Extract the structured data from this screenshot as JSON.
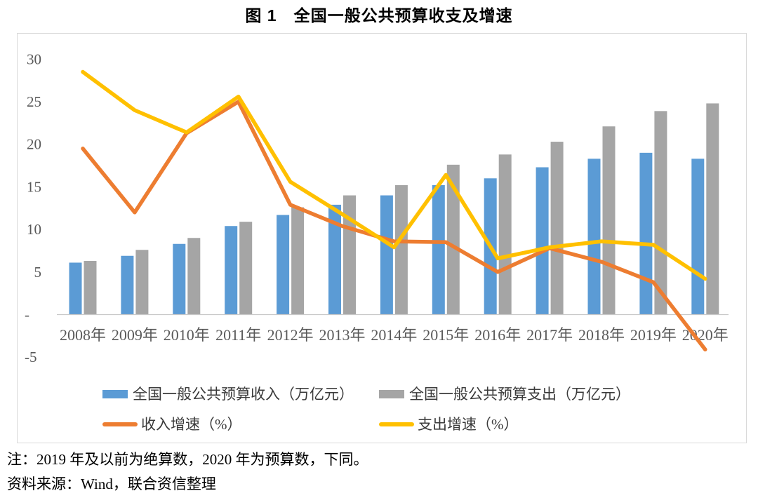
{
  "title": "图 1　全国一般公共预算收支及增速",
  "chart_data": {
    "type": "combo_bar_line",
    "title": "图 1　全国一般公共预算收支及增速",
    "categories": [
      "2008年",
      "2009年",
      "2010年",
      "2011年",
      "2012年",
      "2013年",
      "2014年",
      "2015年",
      "2016年",
      "2017年",
      "2018年",
      "2019年",
      "2020年"
    ],
    "series": [
      {
        "name": "全国一般公共预算收入（万亿元）",
        "type": "bar",
        "color": "#5B9BD5",
        "values": [
          6.1,
          6.9,
          8.3,
          10.4,
          11.7,
          12.9,
          14.0,
          15.2,
          16.0,
          17.3,
          18.3,
          19.0,
          18.3
        ]
      },
      {
        "name": "全国一般公共预算支出（万亿元）",
        "type": "bar",
        "color": "#A5A5A5",
        "values": [
          6.3,
          7.6,
          9.0,
          10.9,
          12.6,
          14.0,
          15.2,
          17.6,
          18.8,
          20.3,
          22.1,
          23.9,
          24.8
        ]
      },
      {
        "name": "收入增速（%）",
        "type": "line",
        "color": "#ED7D31",
        "values": [
          19.5,
          12.0,
          21.3,
          25.0,
          12.9,
          10.4,
          8.6,
          8.5,
          5.0,
          7.8,
          6.2,
          3.8,
          -4.1
        ]
      },
      {
        "name": "支出增速（%）",
        "type": "line",
        "color": "#FFC000",
        "values": [
          28.5,
          24.0,
          21.4,
          25.6,
          15.6,
          11.8,
          7.9,
          16.4,
          6.6,
          7.9,
          8.6,
          8.2,
          4.2
        ]
      }
    ],
    "y_axis": {
      "min": -5,
      "max": 30,
      "step": 5,
      "ticks": [
        {
          "label": "30",
          "value": 30
        },
        {
          "label": "25",
          "value": 25
        },
        {
          "label": "20",
          "value": 20
        },
        {
          "label": "15",
          "value": 15
        },
        {
          "label": "10",
          "value": 10
        },
        {
          "label": "5",
          "value": 5
        },
        {
          "label": "-",
          "value": 0
        },
        {
          "label": "-5",
          "value": -5
        }
      ]
    },
    "grid": false,
    "legend_position": "bottom"
  },
  "notes": {
    "note": "注：2019 年及以前为绝算数，2020 年为预算数，下同。",
    "source": "资料来源：Wind，联合资信整理"
  },
  "colors": {
    "revenue_bar": "#5B9BD5",
    "expenditure_bar": "#A5A5A5",
    "revenue_growth_line": "#ED7D31",
    "expenditure_growth_line": "#FFC000",
    "axis_text": "#595959",
    "axis_line": "#c9c9c9",
    "panel_border": "#d9d9d9"
  }
}
